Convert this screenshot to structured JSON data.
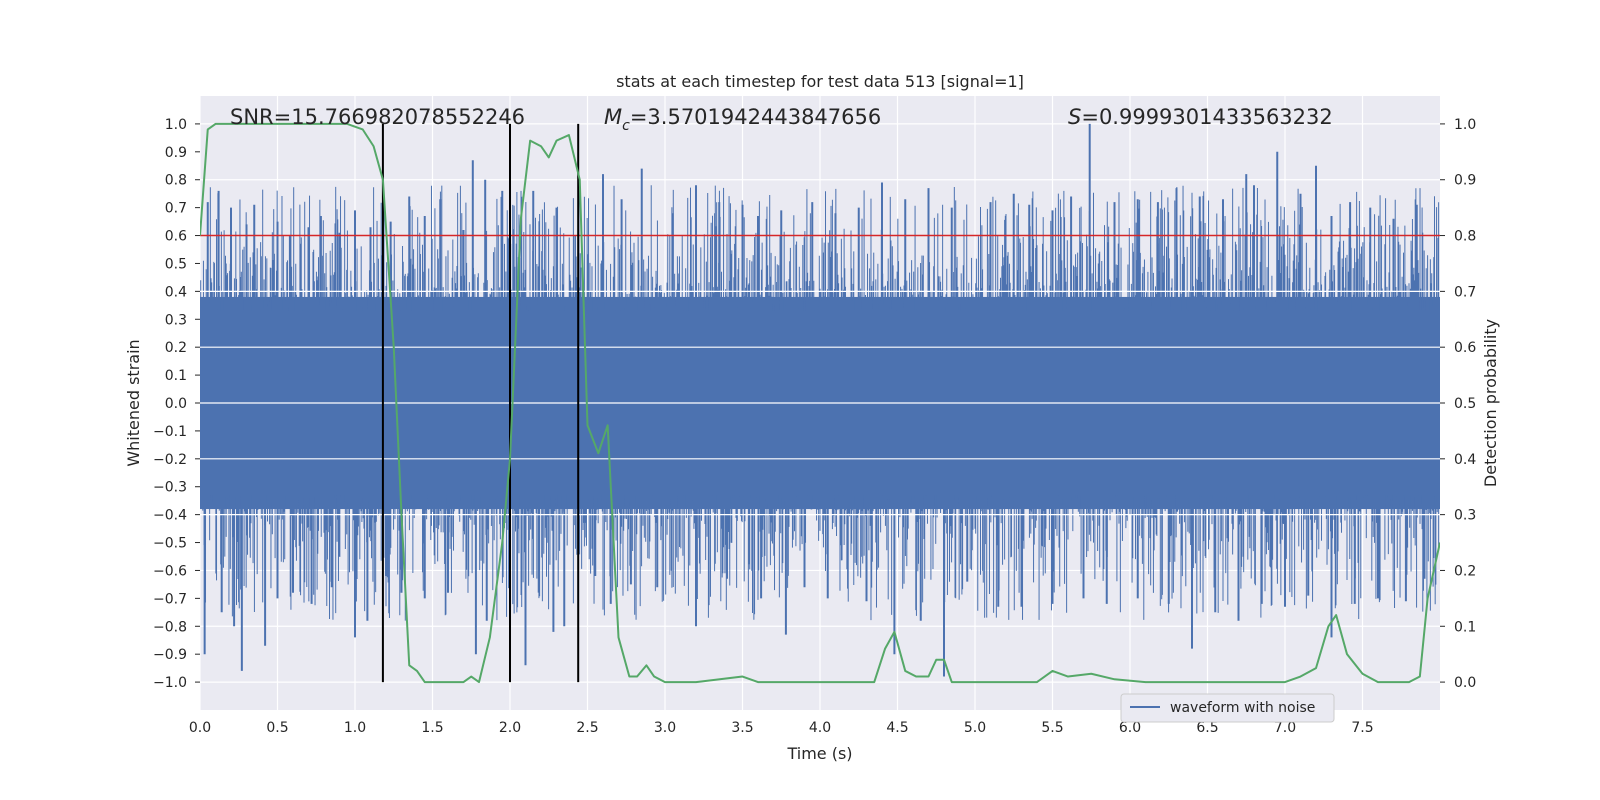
{
  "chart_data": {
    "type": "line",
    "title": "stats at each timestep for test data 513 [signal=1]",
    "xlabel": "Time (s)",
    "ylabel": "Whitened strain",
    "y2label": "Detection probability",
    "xlim": [
      0.0,
      8.0
    ],
    "ylim": [
      -1.1,
      1.1
    ],
    "y2lim": [
      -0.05,
      1.05
    ],
    "xticks": [
      "0.0",
      "0.5",
      "1.0",
      "1.5",
      "2.0",
      "2.5",
      "3.0",
      "3.5",
      "4.0",
      "4.5",
      "5.0",
      "5.5",
      "6.0",
      "6.5",
      "7.0",
      "7.5"
    ],
    "yticks": [
      "1.0",
      "0.9",
      "0.8",
      "0.7",
      "0.6",
      "0.5",
      "0.4",
      "0.3",
      "0.2",
      "0.1",
      "0.0",
      "−0.1",
      "−0.2",
      "−0.3",
      "−0.4",
      "−0.5",
      "−0.6",
      "−0.7",
      "−0.8",
      "−0.9",
      "−1.0"
    ],
    "y2ticks": [
      "1.0",
      "0.9",
      "0.8",
      "0.7",
      "0.6",
      "0.5",
      "0.4",
      "0.3",
      "0.2",
      "0.1",
      "0.0"
    ],
    "annotations": {
      "snr": "SNR=15.766982078552246",
      "mc_symbol": "M",
      "mc_subscript": "c",
      "mc_value": "=3.5701942443847656",
      "s_symbol": "S",
      "s_value": "=0.9999301433563232"
    },
    "threshold": {
      "y2": 0.8,
      "color": "#d62728"
    },
    "vertical_lines": {
      "x": [
        1.18,
        2.0,
        2.44
      ],
      "color": "#000000"
    },
    "legend": {
      "label": "waveform with noise",
      "location": "lower-right"
    },
    "series": [
      {
        "name": "waveform with noise",
        "axis": "left",
        "style": "noise-band",
        "color": "#4c72b0",
        "core_amplitude": 0.38,
        "observed_max": 1.0,
        "observed_min": -0.98,
        "top_spikes": [
          [
            0.05,
            0.72
          ],
          [
            0.12,
            0.76
          ],
          [
            0.2,
            0.7
          ],
          [
            0.3,
            0.64
          ],
          [
            0.35,
            0.71
          ],
          [
            0.5,
            0.65
          ],
          [
            0.58,
            0.6
          ],
          [
            0.7,
            0.63
          ],
          [
            0.78,
            0.67
          ],
          [
            0.9,
            0.61
          ],
          [
            1.0,
            0.69
          ],
          [
            1.1,
            0.63
          ],
          [
            1.23,
            0.65
          ],
          [
            1.35,
            0.74
          ],
          [
            1.45,
            0.67
          ],
          [
            1.55,
            0.73
          ],
          [
            1.7,
            0.62
          ],
          [
            1.76,
            0.87
          ],
          [
            1.84,
            0.8
          ],
          [
            1.95,
            0.76
          ],
          [
            2.15,
            0.76
          ],
          [
            2.3,
            0.7
          ],
          [
            2.6,
            0.82
          ],
          [
            2.72,
            0.73
          ],
          [
            2.85,
            0.84
          ],
          [
            3.05,
            0.68
          ],
          [
            3.2,
            0.78
          ],
          [
            3.35,
            0.72
          ],
          [
            3.5,
            0.71
          ],
          [
            3.6,
            0.67
          ],
          [
            3.75,
            0.69
          ],
          [
            3.95,
            0.72
          ],
          [
            4.1,
            0.68
          ],
          [
            4.25,
            0.7
          ],
          [
            4.4,
            0.79
          ],
          [
            4.55,
            0.73
          ],
          [
            4.7,
            0.77
          ],
          [
            4.85,
            0.7
          ],
          [
            5.1,
            0.72
          ],
          [
            5.25,
            0.75
          ],
          [
            5.35,
            0.71
          ],
          [
            5.5,
            0.69
          ],
          [
            5.62,
            0.74
          ],
          [
            5.74,
            1.0
          ],
          [
            5.9,
            0.72
          ],
          [
            6.05,
            0.73
          ],
          [
            6.18,
            0.72
          ],
          [
            6.3,
            0.77
          ],
          [
            6.45,
            0.74
          ],
          [
            6.6,
            0.73
          ],
          [
            6.75,
            0.82
          ],
          [
            6.8,
            0.78
          ],
          [
            6.95,
            0.9
          ],
          [
            7.1,
            0.75
          ],
          [
            7.2,
            0.85
          ],
          [
            7.3,
            0.67
          ],
          [
            7.42,
            0.72
          ],
          [
            7.55,
            0.7
          ],
          [
            7.7,
            0.66
          ],
          [
            7.85,
            0.71
          ]
        ],
        "bottom_spikes": [
          [
            0.03,
            -0.9
          ],
          [
            0.14,
            -0.75
          ],
          [
            0.22,
            -0.8
          ],
          [
            0.27,
            -0.96
          ],
          [
            0.42,
            -0.87
          ],
          [
            0.5,
            -0.7
          ],
          [
            0.6,
            -0.68
          ],
          [
            0.72,
            -0.72
          ],
          [
            0.85,
            -0.66
          ],
          [
            1.0,
            -0.84
          ],
          [
            1.08,
            -0.78
          ],
          [
            1.2,
            -0.62
          ],
          [
            1.3,
            -0.68
          ],
          [
            1.45,
            -0.7
          ],
          [
            1.6,
            -0.68
          ],
          [
            1.78,
            -0.9
          ],
          [
            1.85,
            -0.78
          ],
          [
            2.1,
            -0.94
          ],
          [
            2.28,
            -0.82
          ],
          [
            2.35,
            -0.8
          ],
          [
            2.55,
            -0.62
          ],
          [
            2.65,
            -0.72
          ],
          [
            2.78,
            -0.65
          ],
          [
            2.95,
            -0.66
          ],
          [
            3.2,
            -0.8
          ],
          [
            3.4,
            -0.63
          ],
          [
            3.62,
            -0.7
          ],
          [
            3.78,
            -0.83
          ],
          [
            3.9,
            -0.66
          ],
          [
            4.05,
            -0.7
          ],
          [
            4.3,
            -0.71
          ],
          [
            4.48,
            -0.9
          ],
          [
            4.65,
            -0.78
          ],
          [
            4.8,
            -0.98
          ],
          [
            4.95,
            -0.64
          ],
          [
            5.15,
            -0.73
          ],
          [
            5.3,
            -0.73
          ],
          [
            5.5,
            -0.72
          ],
          [
            5.7,
            -0.7
          ],
          [
            5.85,
            -0.72
          ],
          [
            6.05,
            -0.7
          ],
          [
            6.25,
            -0.72
          ],
          [
            6.4,
            -0.88
          ],
          [
            6.55,
            -0.75
          ],
          [
            6.7,
            -0.78
          ],
          [
            6.85,
            -0.72
          ],
          [
            7.0,
            -0.73
          ],
          [
            7.15,
            -0.69
          ],
          [
            7.3,
            -0.84
          ],
          [
            7.45,
            -0.72
          ],
          [
            7.6,
            -0.7
          ],
          [
            7.78,
            -0.71
          ],
          [
            7.9,
            -0.63
          ]
        ]
      },
      {
        "name": "detection probability",
        "axis": "right",
        "color": "#55a868",
        "x": [
          0.0,
          0.05,
          0.1,
          0.2,
          0.4,
          0.6,
          0.8,
          0.95,
          1.05,
          1.12,
          1.18,
          1.25,
          1.3,
          1.35,
          1.4,
          1.45,
          1.5,
          1.6,
          1.7,
          1.75,
          1.8,
          1.87,
          1.95,
          2.0,
          2.07,
          2.13,
          2.2,
          2.25,
          2.3,
          2.38,
          2.45,
          2.5,
          2.57,
          2.63,
          2.7,
          2.77,
          2.82,
          2.88,
          2.93,
          3.0,
          3.2,
          3.5,
          3.6,
          4.0,
          4.2,
          4.35,
          4.42,
          4.48,
          4.55,
          4.62,
          4.7,
          4.75,
          4.8,
          4.85,
          5.0,
          5.4,
          5.5,
          5.6,
          5.75,
          5.9,
          6.1,
          6.5,
          7.0,
          7.1,
          7.2,
          7.28,
          7.33,
          7.4,
          7.5,
          7.6,
          7.8,
          7.87,
          7.92,
          8.0
        ],
        "y": [
          0.8,
          0.99,
          1.0,
          1.0,
          1.0,
          1.0,
          1.0,
          1.0,
          0.99,
          0.96,
          0.9,
          0.6,
          0.3,
          0.03,
          0.02,
          0.0,
          0.0,
          0.0,
          0.0,
          0.01,
          0.0,
          0.08,
          0.25,
          0.4,
          0.83,
          0.97,
          0.96,
          0.94,
          0.97,
          0.98,
          0.9,
          0.46,
          0.41,
          0.46,
          0.08,
          0.01,
          0.01,
          0.03,
          0.01,
          0.0,
          0.0,
          0.01,
          0.0,
          0.0,
          0.0,
          0.0,
          0.06,
          0.09,
          0.02,
          0.01,
          0.01,
          0.04,
          0.04,
          0.0,
          0.0,
          0.0,
          0.02,
          0.01,
          0.015,
          0.005,
          0.0,
          0.0,
          0.0,
          0.01,
          0.025,
          0.1,
          0.12,
          0.05,
          0.015,
          0.0,
          0.0,
          0.01,
          0.15,
          0.25
        ]
      }
    ]
  }
}
